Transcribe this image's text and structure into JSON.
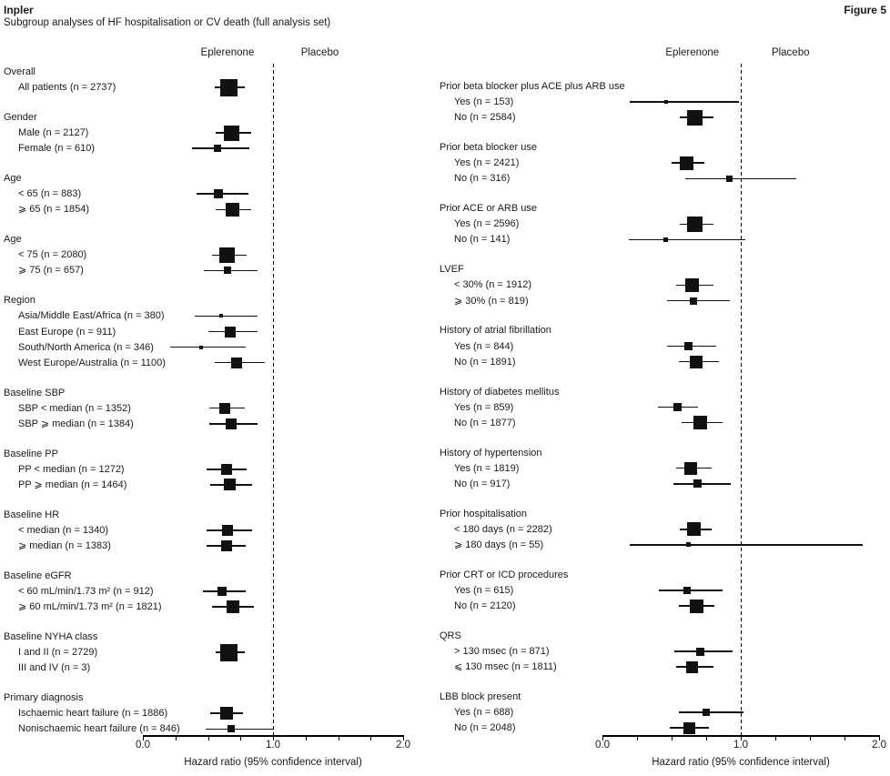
{
  "page": {
    "title_left": "Inpler",
    "title_right": "Figure 5",
    "subtitle": "Subgroup analyses of HF hospitalisation or CV death (full analysis set)"
  },
  "chart_data": {
    "type": "forest",
    "title": "Subgroup analyses of HF hospitalisation or CV death (full analysis set)",
    "xlabel": "Hazard ratio (95% confidence interval)",
    "xlim": [
      0.0,
      2.0
    ],
    "x_major_ticks": [
      "0.0",
      "1.0",
      "2.0"
    ],
    "x_minor_step": 0.25,
    "reference_line": 1.0,
    "column_headers": {
      "treatment": "Eplerenone",
      "control": "Placebo"
    },
    "legend_note": "square size reflects subgroup weight; values read from plot pixels",
    "panels": [
      {
        "side": "left",
        "groups": [
          {
            "label": "Overall",
            "items": [
              {
                "label": "All patients (n = 2737)",
                "n": 2737,
                "hr": 0.66,
                "lo": 0.55,
                "hi": 0.78,
                "size": 19
              }
            ]
          },
          {
            "label": "Gender",
            "items": [
              {
                "label": "Male (n = 2127)",
                "n": 2127,
                "hr": 0.68,
                "lo": 0.56,
                "hi": 0.83,
                "size": 17
              },
              {
                "label": "Female (n = 610)",
                "n": 610,
                "hr": 0.57,
                "lo": 0.38,
                "hi": 0.82,
                "size": 8
              }
            ]
          },
          {
            "label": "Age",
            "items": [
              {
                "label": "< 65 (n = 883)",
                "n": 883,
                "hr": 0.58,
                "lo": 0.41,
                "hi": 0.81,
                "size": 10
              },
              {
                "label": "⩾ 65 (n = 1854)",
                "n": 1854,
                "hr": 0.69,
                "lo": 0.56,
                "hi": 0.83,
                "size": 15
              }
            ]
          },
          {
            "label": "Age",
            "items": [
              {
                "label": "< 75 (n = 2080)",
                "n": 2080,
                "hr": 0.65,
                "lo": 0.53,
                "hi": 0.8,
                "size": 17
              },
              {
                "label": "⩾ 75 (n = 657)",
                "n": 657,
                "hr": 0.65,
                "lo": 0.47,
                "hi": 0.88,
                "size": 8
              }
            ]
          },
          {
            "label": "Region",
            "items": [
              {
                "label": "Asia/Middle East/Africa (n = 380)",
                "n": 380,
                "hr": 0.6,
                "lo": 0.4,
                "hi": 0.88,
                "size": 4
              },
              {
                "label": "East Europe (n = 911)",
                "n": 911,
                "hr": 0.67,
                "lo": 0.5,
                "hi": 0.88,
                "size": 12
              },
              {
                "label": "South/North America (n = 346)",
                "n": 346,
                "hr": 0.45,
                "lo": 0.21,
                "hi": 0.79,
                "size": 4
              },
              {
                "label": "West Europe/Australia (n = 1100)",
                "n": 1100,
                "hr": 0.72,
                "lo": 0.55,
                "hi": 0.94,
                "size": 12
              }
            ]
          },
          {
            "label": "Baseline SBP",
            "items": [
              {
                "label": "SBP < median (n = 1352)",
                "n": 1352,
                "hr": 0.63,
                "lo": 0.51,
                "hi": 0.78,
                "size": 12
              },
              {
                "label": "SBP ⩾ median (n = 1384)",
                "n": 1384,
                "hr": 0.68,
                "lo": 0.51,
                "hi": 0.88,
                "size": 12
              }
            ]
          },
          {
            "label": "Baseline PP",
            "items": [
              {
                "label": "PP < median (n = 1272)",
                "n": 1272,
                "hr": 0.64,
                "lo": 0.49,
                "hi": 0.8,
                "size": 12
              },
              {
                "label": "PP ⩾ median (n = 1464)",
                "n": 1464,
                "hr": 0.67,
                "lo": 0.52,
                "hi": 0.84,
                "size": 13
              }
            ]
          },
          {
            "label": "Baseline HR",
            "items": [
              {
                "label": "< median (n = 1340)",
                "n": 1340,
                "hr": 0.65,
                "lo": 0.49,
                "hi": 0.84,
                "size": 12
              },
              {
                "label": "⩾ median (n = 1383)",
                "n": 1383,
                "hr": 0.64,
                "lo": 0.49,
                "hi": 0.79,
                "size": 12
              }
            ]
          },
          {
            "label": "Baseline eGFR",
            "items": [
              {
                "label": "< 60 mL/min/1.73 m² (n = 912)",
                "n": 912,
                "hr": 0.61,
                "lo": 0.46,
                "hi": 0.79,
                "size": 10
              },
              {
                "label": "⩾ 60 mL/min/1.73 m² (n = 1821)",
                "n": 1821,
                "hr": 0.69,
                "lo": 0.53,
                "hi": 0.85,
                "size": 14
              }
            ]
          },
          {
            "label": "Baseline NYHA class",
            "items": [
              {
                "label": "I and II (n = 2729)",
                "n": 2729,
                "hr": 0.66,
                "lo": 0.56,
                "hi": 0.78,
                "size": 19
              },
              {
                "label": "III and IV (n = 3)",
                "n": 3,
                "hr": null,
                "lo": null,
                "hi": null,
                "size": 0
              }
            ]
          },
          {
            "label": "Primary diagnosis",
            "items": [
              {
                "label": "Ischaemic heart failure (n = 1886)",
                "n": 1886,
                "hr": 0.64,
                "lo": 0.52,
                "hi": 0.77,
                "size": 14
              },
              {
                "label": "Nonischaemic heart failure (n = 846)",
                "n": 846,
                "hr": 0.68,
                "lo": 0.48,
                "hi": 1.0,
                "size": 8
              }
            ]
          }
        ]
      },
      {
        "side": "right",
        "groups": [
          {
            "label": "Prior beta blocker plus ACE plus ARB use",
            "items": [
              {
                "label": "Yes (n = 153)",
                "n": 153,
                "hr": 0.46,
                "lo": 0.2,
                "hi": 0.99,
                "size": 4
              },
              {
                "label": "No (n = 2584)",
                "n": 2584,
                "hr": 0.67,
                "lo": 0.56,
                "hi": 0.8,
                "size": 17
              }
            ]
          },
          {
            "label": "Prior beta blocker use",
            "items": [
              {
                "label": "Yes (n = 2421)",
                "n": 2421,
                "hr": 0.61,
                "lo": 0.5,
                "hi": 0.74,
                "size": 15
              },
              {
                "label": "No (n = 316)",
                "n": 316,
                "hr": 0.92,
                "lo": 0.6,
                "hi": 1.4,
                "size": 7
              }
            ]
          },
          {
            "label": "Prior ACE or ARB use",
            "items": [
              {
                "label": "Yes (n = 2596)",
                "n": 2596,
                "hr": 0.67,
                "lo": 0.56,
                "hi": 0.8,
                "size": 17
              },
              {
                "label": "No (n = 141)",
                "n": 141,
                "hr": 0.46,
                "lo": 0.19,
                "hi": 1.03,
                "size": 5
              }
            ]
          },
          {
            "label": "LVEF",
            "items": [
              {
                "label": "< 30% (n = 1912)",
                "n": 1912,
                "hr": 0.65,
                "lo": 0.53,
                "hi": 0.8,
                "size": 15
              },
              {
                "label": "⩾ 30% (n = 819)",
                "n": 819,
                "hr": 0.66,
                "lo": 0.47,
                "hi": 0.92,
                "size": 8
              }
            ]
          },
          {
            "label": "History of atrial fibrillation",
            "items": [
              {
                "label": "Yes (n = 844)",
                "n": 844,
                "hr": 0.62,
                "lo": 0.47,
                "hi": 0.82,
                "size": 9
              },
              {
                "label": "No (n = 1891)",
                "n": 1891,
                "hr": 0.68,
                "lo": 0.55,
                "hi": 0.84,
                "size": 14
              }
            ]
          },
          {
            "label": "History of diabetes mellitus",
            "items": [
              {
                "label": "Yes (n = 859)",
                "n": 859,
                "hr": 0.54,
                "lo": 0.4,
                "hi": 0.69,
                "size": 9
              },
              {
                "label": "No (n = 1877)",
                "n": 1877,
                "hr": 0.71,
                "lo": 0.57,
                "hi": 0.87,
                "size": 15
              }
            ]
          },
          {
            "label": "History of hypertension",
            "items": [
              {
                "label": "Yes (n = 1819)",
                "n": 1819,
                "hr": 0.64,
                "lo": 0.53,
                "hi": 0.79,
                "size": 14
              },
              {
                "label": "No (n = 917)",
                "n": 917,
                "hr": 0.69,
                "lo": 0.51,
                "hi": 0.93,
                "size": 9
              }
            ]
          },
          {
            "label": "Prior hospitalisation",
            "items": [
              {
                "label": "< 180 days (n = 2282)",
                "n": 2282,
                "hr": 0.66,
                "lo": 0.56,
                "hi": 0.79,
                "size": 15
              },
              {
                "label": "⩾ 180 days (n = 55)",
                "n": 55,
                "hr": 0.62,
                "lo": 0.2,
                "hi": 1.88,
                "size": 5
              }
            ]
          },
          {
            "label": "Prior CRT or ICD procedures",
            "items": [
              {
                "label": "Yes (n = 615)",
                "n": 615,
                "hr": 0.61,
                "lo": 0.41,
                "hi": 0.87,
                "size": 8
              },
              {
                "label": "No (n = 2120)",
                "n": 2120,
                "hr": 0.68,
                "lo": 0.55,
                "hi": 0.81,
                "size": 15
              }
            ]
          },
          {
            "label": "QRS",
            "items": [
              {
                "label": "> 130 msec (n = 871)",
                "n": 871,
                "hr": 0.71,
                "lo": 0.52,
                "hi": 0.94,
                "size": 9
              },
              {
                "label": "⩽ 130 msec (n = 1811)",
                "n": 1811,
                "hr": 0.65,
                "lo": 0.53,
                "hi": 0.8,
                "size": 13
              }
            ]
          },
          {
            "label": "LBB block present",
            "items": [
              {
                "label": "Yes (n = 688)",
                "n": 688,
                "hr": 0.75,
                "lo": 0.55,
                "hi": 1.02,
                "size": 8
              },
              {
                "label": "No (n = 2048)",
                "n": 2048,
                "hr": 0.63,
                "lo": 0.49,
                "hi": 0.77,
                "size": 13
              }
            ]
          }
        ]
      }
    ]
  }
}
